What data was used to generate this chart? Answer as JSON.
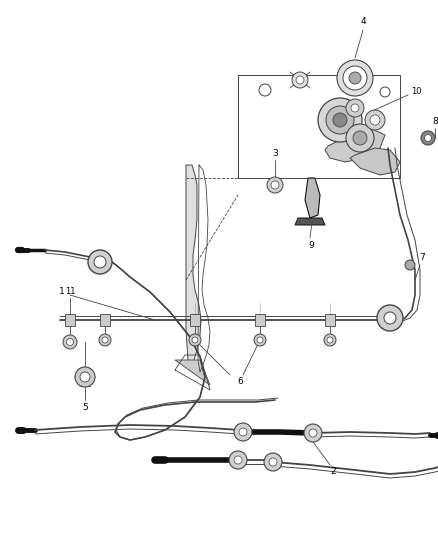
{
  "bg_color": "#ffffff",
  "lc": "#444444",
  "dc": "#111111",
  "gc": "#888888",
  "fig_width": 4.38,
  "fig_height": 5.33,
  "dpi": 100
}
